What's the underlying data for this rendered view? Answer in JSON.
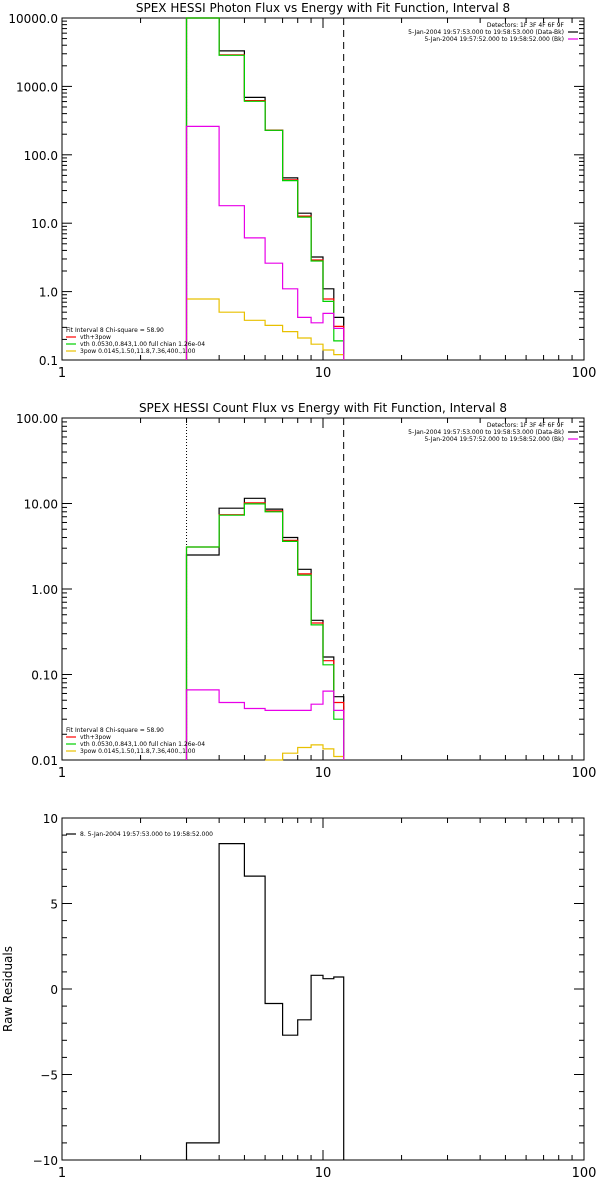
{
  "chart_data": [
    {
      "type": "line",
      "title": "SPEX HESSI Photon Flux vs Energy with Fit Function, Interval 8",
      "x_scale": "log",
      "y_scale": "log",
      "xlim": [
        1,
        100
      ],
      "ylim": [
        0.1,
        10000
      ],
      "x_tick_labels": [
        "1",
        "10",
        "100"
      ],
      "y_tick_labels": [
        "10000.0",
        "1000.0",
        "100.0",
        "10.0",
        "1.0",
        "0.1"
      ],
      "fit_start_x": 3.0,
      "fit_end_x": 12.0,
      "header_lines": [
        {
          "text": "Detectors: 1F 3F 4F 6F 9F",
          "color": ""
        },
        {
          "text": "5-Jan-2004 19:57:53.000 to 19:58:53.000 (Data-Bk)",
          "color": "#000000"
        },
        {
          "text": "5-Jan-2004 19:57:52.000 to 19:58:52.000 (Bk)",
          "color": "#e800e8"
        }
      ],
      "legend_lines": [
        {
          "text": "Fit Interval 8   Chi-square = 58.90",
          "color": ""
        },
        {
          "text": "vth+3pow",
          "color": "#ff0000"
        },
        {
          "text": "vth 0.0530,0.843,1.00   full chian 1.26e-04",
          "color": "#00d000"
        },
        {
          "text": "3pow 0.0145,1.50,11.8,7.36,400.,1.00",
          "color": "#e8c000"
        }
      ],
      "series": [
        {
          "label": "Data-Bk",
          "color": "#000000",
          "edges": [
            3.0,
            4.0,
            5.0,
            6.0,
            7.0,
            8.0,
            9.0,
            10.0,
            11.0,
            12.0
          ],
          "values": [
            10000,
            3300,
            690,
            230,
            46,
            14,
            3.2,
            1.1,
            0.42
          ]
        },
        {
          "label": "vth+3pow",
          "color": "#ff0000",
          "edges": [
            3.0,
            4.0,
            5.0,
            6.0,
            7.0,
            8.0,
            9.0,
            10.0,
            11.0,
            12.0
          ],
          "values": [
            10000,
            2900,
            620,
            230,
            43,
            12.7,
            2.9,
            0.78,
            0.31
          ]
        },
        {
          "label": "vth",
          "color": "#00d000",
          "edges": [
            3.0,
            4.0,
            5.0,
            6.0,
            7.0,
            8.0,
            9.0,
            10.0,
            11.0,
            12.0
          ],
          "values": [
            10000,
            2850,
            605,
            228,
            42,
            12.3,
            2.8,
            0.72,
            0.19
          ]
        },
        {
          "label": "3pow",
          "color": "#e8c000",
          "edges": [
            3.0,
            4.0,
            5.0,
            6.0,
            7.0,
            8.0,
            9.0,
            10.0,
            11.0,
            12.0
          ],
          "values": [
            0.78,
            0.5,
            0.38,
            0.32,
            0.26,
            0.21,
            0.17,
            0.14,
            0.12
          ]
        },
        {
          "label": "Bk",
          "color": "#e800e8",
          "edges": [
            3.0,
            4.0,
            5.0,
            6.0,
            7.0,
            8.0,
            9.0,
            10.0,
            11.0,
            12.0
          ],
          "values": [
            260,
            18,
            6.1,
            2.6,
            1.1,
            0.42,
            0.35,
            0.48,
            0.29
          ]
        }
      ]
    },
    {
      "type": "line",
      "title": "SPEX HESSI Count Flux vs Energy with Fit Function, Interval 8",
      "x_scale": "log",
      "y_scale": "log",
      "xlim": [
        1,
        100
      ],
      "ylim": [
        0.01,
        100
      ],
      "x_tick_labels": [
        "1",
        "10",
        "100"
      ],
      "y_tick_labels": [
        "100.00",
        "10.00",
        "1.00",
        "0.10",
        "0.01"
      ],
      "fit_start_x": 3.0,
      "fit_end_x": 12.0,
      "header_lines": [
        {
          "text": "Detectors: 1F 3F 4F 6F 9F",
          "color": ""
        },
        {
          "text": "5-Jan-2004 19:57:53.000 to 19:58:53.000 (Data-Bk)",
          "color": "#000000"
        },
        {
          "text": "5-Jan-2004 19:57:52.000 to 19:58:52.000 (Bk)",
          "color": "#e800e8"
        }
      ],
      "legend_lines": [
        {
          "text": "Fit Interval 8   Chi-square = 58.90",
          "color": ""
        },
        {
          "text": "vth+3pow",
          "color": "#ff0000"
        },
        {
          "text": "vth 0.0530,0.843,1.00   full chian 1.26e-04",
          "color": "#00d000"
        },
        {
          "text": "3pow 0.0145,1.50,11.8,7.36,400.,1.00",
          "color": "#e8c000"
        }
      ],
      "series": [
        {
          "label": "Data-Bk",
          "color": "#000000",
          "edges": [
            3.0,
            4.0,
            5.0,
            6.0,
            7.0,
            8.0,
            9.0,
            10.0,
            11.0,
            12.0
          ],
          "values": [
            2.5,
            8.8,
            11.5,
            8.6,
            4.0,
            1.7,
            0.43,
            0.16,
            0.055
          ]
        },
        {
          "label": "vth+3pow",
          "color": "#ff0000",
          "edges": [
            3.0,
            4.0,
            5.0,
            6.0,
            7.0,
            8.0,
            9.0,
            10.0,
            11.0,
            12.0
          ],
          "values": [
            3.1,
            7.4,
            10.2,
            8.2,
            3.7,
            1.5,
            0.4,
            0.145,
            0.047
          ]
        },
        {
          "label": "vth",
          "color": "#00d000",
          "edges": [
            3.0,
            4.0,
            5.0,
            6.0,
            7.0,
            8.0,
            9.0,
            10.0,
            11.0,
            12.0
          ],
          "values": [
            3.1,
            7.3,
            9.9,
            8.0,
            3.6,
            1.45,
            0.38,
            0.13,
            0.03
          ]
        },
        {
          "label": "3pow",
          "color": "#e8c000",
          "edges": [
            6.0,
            7.0,
            8.0,
            9.0,
            10.0,
            11.0,
            12.0
          ],
          "values": [
            0.01,
            0.012,
            0.014,
            0.015,
            0.0135,
            0.011
          ]
        },
        {
          "label": "Bk",
          "color": "#e800e8",
          "edges": [
            3.0,
            4.0,
            5.0,
            6.0,
            7.0,
            8.0,
            9.0,
            10.0,
            11.0,
            12.0
          ],
          "values": [
            0.066,
            0.047,
            0.04,
            0.038,
            0.038,
            0.038,
            0.045,
            0.064,
            0.038
          ]
        }
      ]
    },
    {
      "type": "line",
      "title": "",
      "ylabel": "Raw Residuals",
      "x_scale": "log",
      "y_scale": "linear",
      "xlim": [
        1,
        100
      ],
      "ylim": [
        -10,
        10
      ],
      "x_tick_labels": [
        "1",
        "10",
        "100"
      ],
      "y_tick_labels": [
        "10",
        "5",
        "0",
        "−5",
        "−10"
      ],
      "legend_lines": [
        {
          "text": "8.  5-Jan-2004 19:57:53.000 to 19:58:52.000",
          "color": "#000000"
        }
      ],
      "series": [
        {
          "label": "residuals",
          "color": "#000000",
          "edges": [
            3.0,
            4.0,
            5.0,
            6.0,
            7.0,
            8.0,
            9.0,
            10.0,
            11.0,
            12.0
          ],
          "values": [
            -9.0,
            8.5,
            6.6,
            -0.85,
            -2.7,
            -1.8,
            0.8,
            0.6,
            0.7
          ]
        }
      ]
    }
  ]
}
